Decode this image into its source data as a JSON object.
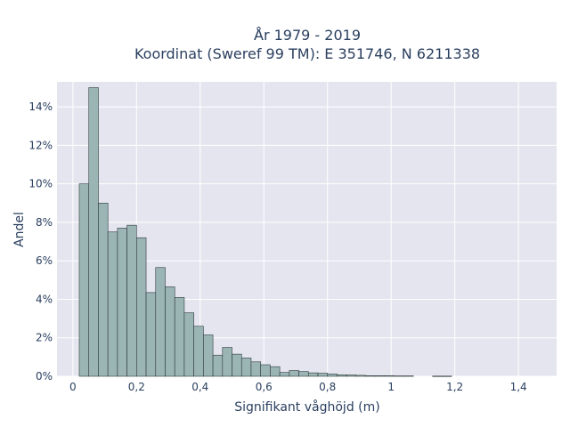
{
  "chart_data": {
    "type": "bar",
    "title": "År 1979 - 2019",
    "subtitle": "Koordinat (Sweref 99 TM): E 351746, N 6211338",
    "xlabel": "Signifikant våghöjd (m)",
    "ylabel": "Andel",
    "xlim": [
      -0.05,
      1.52
    ],
    "ylim": [
      0,
      15.3
    ],
    "x_ticks": [
      {
        "value": 0,
        "label": "0"
      },
      {
        "value": 0.2,
        "label": "0,2"
      },
      {
        "value": 0.4,
        "label": "0,4"
      },
      {
        "value": 0.6,
        "label": "0,6"
      },
      {
        "value": 0.8,
        "label": "0,8"
      },
      {
        "value": 1.0,
        "label": "1"
      },
      {
        "value": 1.2,
        "label": "1,2"
      },
      {
        "value": 1.4,
        "label": "1,4"
      }
    ],
    "y_ticks": [
      {
        "value": 0,
        "label": "0%"
      },
      {
        "value": 2,
        "label": "2%"
      },
      {
        "value": 4,
        "label": "4%"
      },
      {
        "value": 6,
        "label": "6%"
      },
      {
        "value": 8,
        "label": "8%"
      },
      {
        "value": 10,
        "label": "10%"
      },
      {
        "value": 12,
        "label": "12%"
      },
      {
        "value": 14,
        "label": "14%"
      }
    ],
    "bin_start": 0.02,
    "bin_width": 0.03,
    "values": [
      10.0,
      15.0,
      9.0,
      7.5,
      7.7,
      7.85,
      7.2,
      4.35,
      5.65,
      4.65,
      4.1,
      3.3,
      2.6,
      2.15,
      1.1,
      1.5,
      1.15,
      0.95,
      0.75,
      0.6,
      0.5,
      0.2,
      0.3,
      0.25,
      0.18,
      0.16,
      0.12,
      0.08,
      0.07,
      0.05,
      0.03,
      0.03,
      0.03,
      0.02,
      0.02,
      0.0,
      0.0,
      0.01,
      0.01
    ],
    "grid": true,
    "colors": {
      "bar_fill": "#9bb4b4",
      "bar_stroke": "#2f3b3b",
      "plot_bg": "#e5e5ef",
      "grid": "#ffffff"
    }
  }
}
